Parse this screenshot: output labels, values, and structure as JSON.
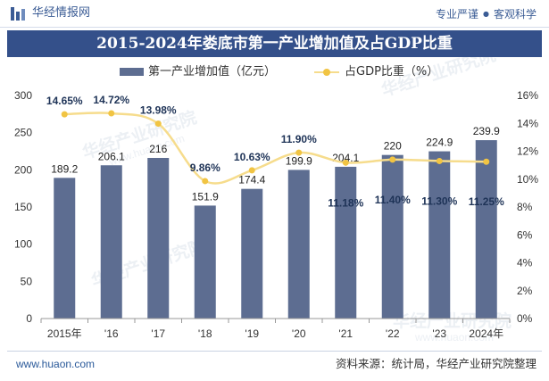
{
  "header": {
    "brand": "华经情报网",
    "slogan_left": "专业严谨",
    "slogan_sep": "●",
    "slogan_right": "客观科学",
    "logo_icon": "bar-chart-logo-icon"
  },
  "footer": {
    "site": "www.huaon.com",
    "source": "资料来源：统计局，华经产业研究院整理"
  },
  "watermark": {
    "name": "华经产业研究院",
    "site": "www.huaon.com"
  },
  "colors": {
    "title_bar": "#34508a",
    "brand": "#3b5c95",
    "bar": "#5d6d91",
    "line": "#f6dc8c",
    "point": "#f1c443",
    "line_label": "#1e3357",
    "bar_label": "#222222",
    "axis": "#999999",
    "watermark": "#dde3ec"
  },
  "chart_data": {
    "type": "bar",
    "title": "2015-2024年娄底市第一产业增加值及占GDP比重",
    "categories": [
      "2015年",
      "'16",
      "'17",
      "'18",
      "'19",
      "'20",
      "'21",
      "'22",
      "'23",
      "2024年"
    ],
    "series": [
      {
        "name": "第一产业增加值（亿元）",
        "type": "bar",
        "axis": "left",
        "values": [
          189.2,
          206.1,
          216,
          151.9,
          174.4,
          199.9,
          204.1,
          220,
          224.9,
          239.9
        ]
      },
      {
        "name": "占GDP比重（%）",
        "type": "line",
        "axis": "right",
        "values": [
          14.65,
          14.72,
          13.98,
          9.86,
          10.63,
          11.9,
          11.18,
          11.4,
          11.3,
          11.25
        ],
        "labels": [
          "14.65%",
          "14.72%",
          "13.98%",
          "9.86%",
          "10.63%",
          "11.90%",
          "11.18%",
          "11.40%",
          "11.30%",
          "11.25%"
        ]
      }
    ],
    "y_left": {
      "range": [
        0,
        300
      ],
      "ticks": [
        0,
        50,
        100,
        150,
        200,
        250,
        300
      ]
    },
    "y_right": {
      "range": [
        0,
        16
      ],
      "ticks": [
        0,
        2,
        4,
        6,
        8,
        10,
        12,
        14,
        16
      ],
      "tick_labels": [
        "0%",
        "2%",
        "4%",
        "6%",
        "8%",
        "10%",
        "12%",
        "14%",
        "16%"
      ]
    },
    "legend": "top-center",
    "grid": false
  }
}
